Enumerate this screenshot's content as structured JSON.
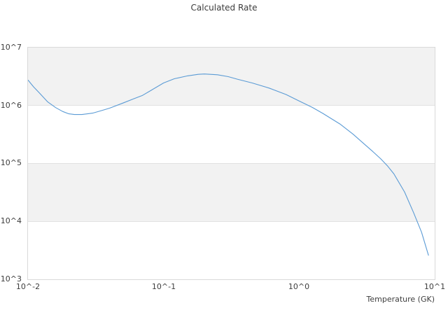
{
  "title": "Calculated Rate",
  "colors": {
    "line": "#5b9bd5",
    "band": "#f2f2f2",
    "plot_border": "#d9d9d9",
    "gridline": "#e2e2e2",
    "text": "#3d3d3d",
    "background": "#ffffff"
  },
  "chart_data": {
    "type": "line",
    "title": "Calculated Rate",
    "xlabel": "Temperature (GK)",
    "ylabel": "",
    "x_scale": "log",
    "y_scale": "log",
    "xlim": [
      0.01,
      10
    ],
    "ylim": [
      1000,
      10000000
    ],
    "x_ticks": [
      0.01,
      0.1,
      1,
      10
    ],
    "x_tick_labels": [
      "10^-2",
      "10^-1",
      "10^0",
      "10^1"
    ],
    "y_ticks": [
      10000000,
      1000000,
      100000,
      10000,
      1000
    ],
    "y_tick_labels": [
      "10^7",
      "10^6",
      "10^5",
      "10^4",
      "10^3"
    ],
    "grid": "horizontal decade lines",
    "legend": "none",
    "shaded_decade_bands": [
      "10^6 to 10^7",
      "10^4 to 10^5"
    ],
    "series": [
      {
        "name": "calculated rate",
        "x": [
          0.01,
          0.011,
          0.012,
          0.014,
          0.016,
          0.018,
          0.02,
          0.022,
          0.025,
          0.03,
          0.035,
          0.04,
          0.05,
          0.06,
          0.07,
          0.08,
          0.1,
          0.12,
          0.15,
          0.18,
          0.2,
          0.25,
          0.3,
          0.35,
          0.45,
          0.6,
          0.8,
          1.0,
          1.25,
          1.5,
          2.0,
          2.5,
          3.0,
          3.5,
          4.0,
          4.5,
          5.0,
          6.0,
          7.0,
          8.0,
          9.0
        ],
        "y": [
          2750000,
          2100000,
          1700000,
          1150000,
          920000,
          790000,
          720000,
          700000,
          700000,
          740000,
          820000,
          900000,
          1100000,
          1300000,
          1500000,
          1800000,
          2450000,
          2900000,
          3250000,
          3450000,
          3500000,
          3400000,
          3150000,
          2850000,
          2450000,
          2000000,
          1550000,
          1200000,
          930000,
          730000,
          480000,
          320000,
          220000,
          160000,
          120000,
          90000,
          66000,
          32000,
          14000,
          6500,
          2600
        ]
      }
    ]
  }
}
